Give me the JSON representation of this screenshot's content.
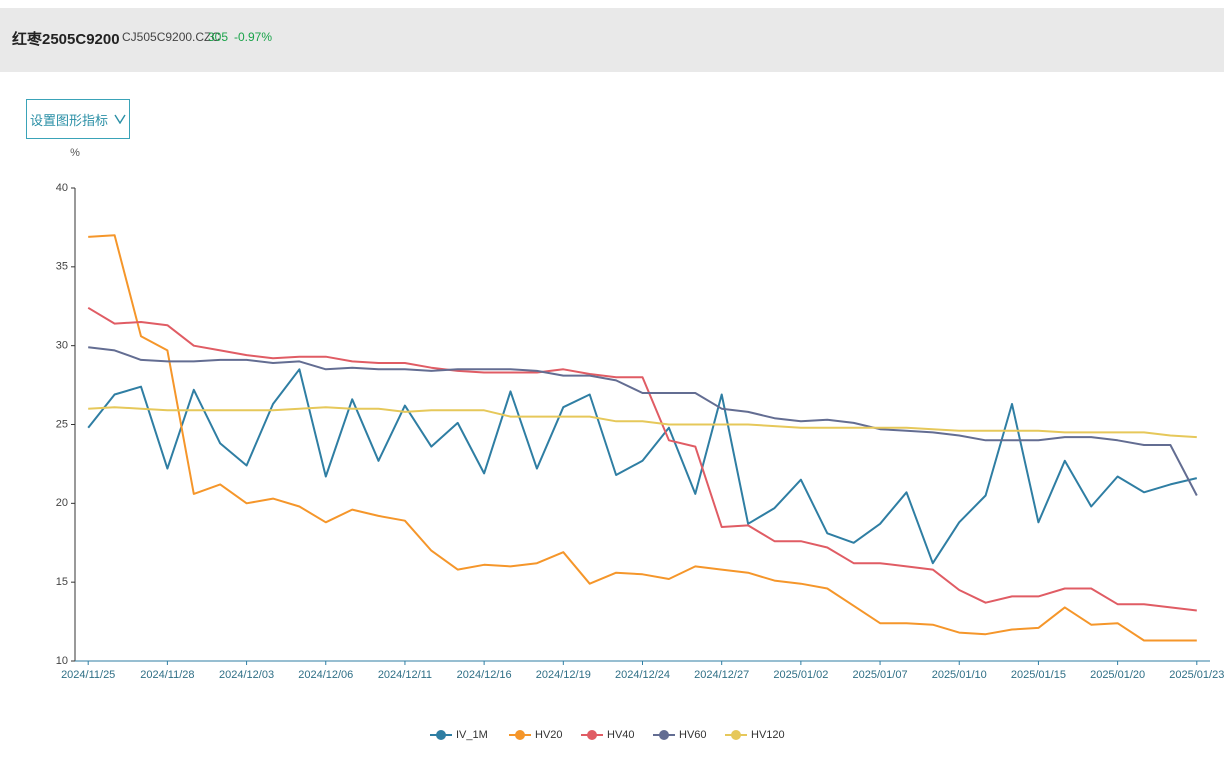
{
  "header": {
    "title": "红枣2505C9200",
    "code": "CJ505C9200.CZC",
    "price": "305",
    "change": "-0.97%"
  },
  "button": {
    "label": "设置图形指标"
  },
  "chart_data": {
    "type": "line",
    "y_label": "%",
    "categories": [
      "2024/11/25",
      null,
      null,
      "2024/11/28",
      null,
      null,
      "2024/12/03",
      null,
      null,
      "2024/12/06",
      null,
      null,
      "2024/12/11",
      null,
      null,
      "2024/12/16",
      null,
      null,
      "2024/12/19",
      null,
      null,
      "2024/12/24",
      null,
      null,
      "2024/12/27",
      null,
      null,
      "2025/01/02",
      null,
      null,
      "2025/01/07",
      null,
      null,
      "2025/01/10",
      null,
      null,
      "2025/01/15",
      null,
      null,
      "2025/01/20",
      null,
      null,
      "2025/01/23"
    ],
    "series": [
      {
        "name": "IV_1M",
        "color": "#2f7ea3",
        "values": [
          24.8,
          26.9,
          27.4,
          22.2,
          27.2,
          23.8,
          22.4,
          26.3,
          28.5,
          21.7,
          26.6,
          22.7,
          26.2,
          23.6,
          25.1,
          21.9,
          27.1,
          22.2,
          26.1,
          26.9,
          21.8,
          22.7,
          24.8,
          20.6,
          26.9,
          18.7,
          19.7,
          21.5,
          18.1,
          17.5,
          18.7,
          20.7,
          16.2,
          18.8,
          20.5,
          26.3,
          18.8,
          22.7,
          19.8,
          21.7,
          20.7,
          21.2,
          21.6
        ]
      },
      {
        "name": "HV20",
        "color": "#f5962a",
        "values": [
          36.9,
          37.0,
          30.6,
          29.7,
          20.6,
          21.2,
          20.0,
          20.3,
          19.8,
          18.8,
          19.6,
          19.2,
          18.9,
          17.0,
          15.8,
          16.1,
          16.0,
          16.2,
          16.9,
          14.9,
          15.6,
          15.5,
          15.2,
          16.0,
          15.8,
          15.6,
          15.1,
          14.9,
          14.6,
          13.5,
          12.4,
          12.4,
          12.3,
          11.8,
          11.7,
          12.0,
          12.1,
          13.4,
          12.3,
          12.4,
          11.3,
          11.3,
          11.3
        ]
      },
      {
        "name": "HV40",
        "color": "#e05c64",
        "values": [
          32.4,
          31.4,
          31.5,
          31.3,
          30.0,
          29.7,
          29.4,
          29.2,
          29.3,
          29.3,
          29.0,
          28.9,
          28.9,
          28.6,
          28.4,
          28.3,
          28.3,
          28.3,
          28.5,
          28.2,
          28.0,
          28.0,
          24.0,
          23.6,
          18.5,
          18.6,
          17.6,
          17.6,
          17.2,
          16.2,
          16.2,
          16.0,
          15.8,
          14.5,
          13.7,
          14.1,
          14.1,
          14.6,
          14.6,
          13.6,
          13.6,
          13.4,
          13.2
        ]
      },
      {
        "name": "HV60",
        "color": "#636d92",
        "values": [
          29.9,
          29.7,
          29.1,
          29.0,
          29.0,
          29.1,
          29.1,
          28.9,
          29.0,
          28.5,
          28.6,
          28.5,
          28.5,
          28.4,
          28.5,
          28.5,
          28.5,
          28.4,
          28.1,
          28.1,
          27.8,
          27.0,
          27.0,
          27.0,
          26.0,
          25.8,
          25.4,
          25.2,
          25.3,
          25.1,
          24.7,
          24.6,
          24.5,
          24.3,
          24.0,
          24.0,
          24.0,
          24.2,
          24.2,
          24.0,
          23.7,
          23.7,
          20.5
        ]
      },
      {
        "name": "HV120",
        "color": "#e6c85a",
        "values": [
          26.0,
          26.1,
          26.0,
          25.9,
          25.9,
          25.9,
          25.9,
          25.9,
          26.0,
          26.1,
          26.0,
          26.0,
          25.8,
          25.9,
          25.9,
          25.9,
          25.5,
          25.5,
          25.5,
          25.5,
          25.2,
          25.2,
          25.0,
          25.0,
          25.0,
          25.0,
          24.9,
          24.8,
          24.8,
          24.8,
          24.8,
          24.8,
          24.7,
          24.6,
          24.6,
          24.6,
          24.6,
          24.5,
          24.5,
          24.5,
          24.5,
          24.3,
          24.2
        ]
      }
    ],
    "ylim": [
      10,
      40
    ],
    "yticks": [
      10,
      15,
      20,
      25,
      30,
      35,
      40
    ],
    "legend": "bottom"
  }
}
